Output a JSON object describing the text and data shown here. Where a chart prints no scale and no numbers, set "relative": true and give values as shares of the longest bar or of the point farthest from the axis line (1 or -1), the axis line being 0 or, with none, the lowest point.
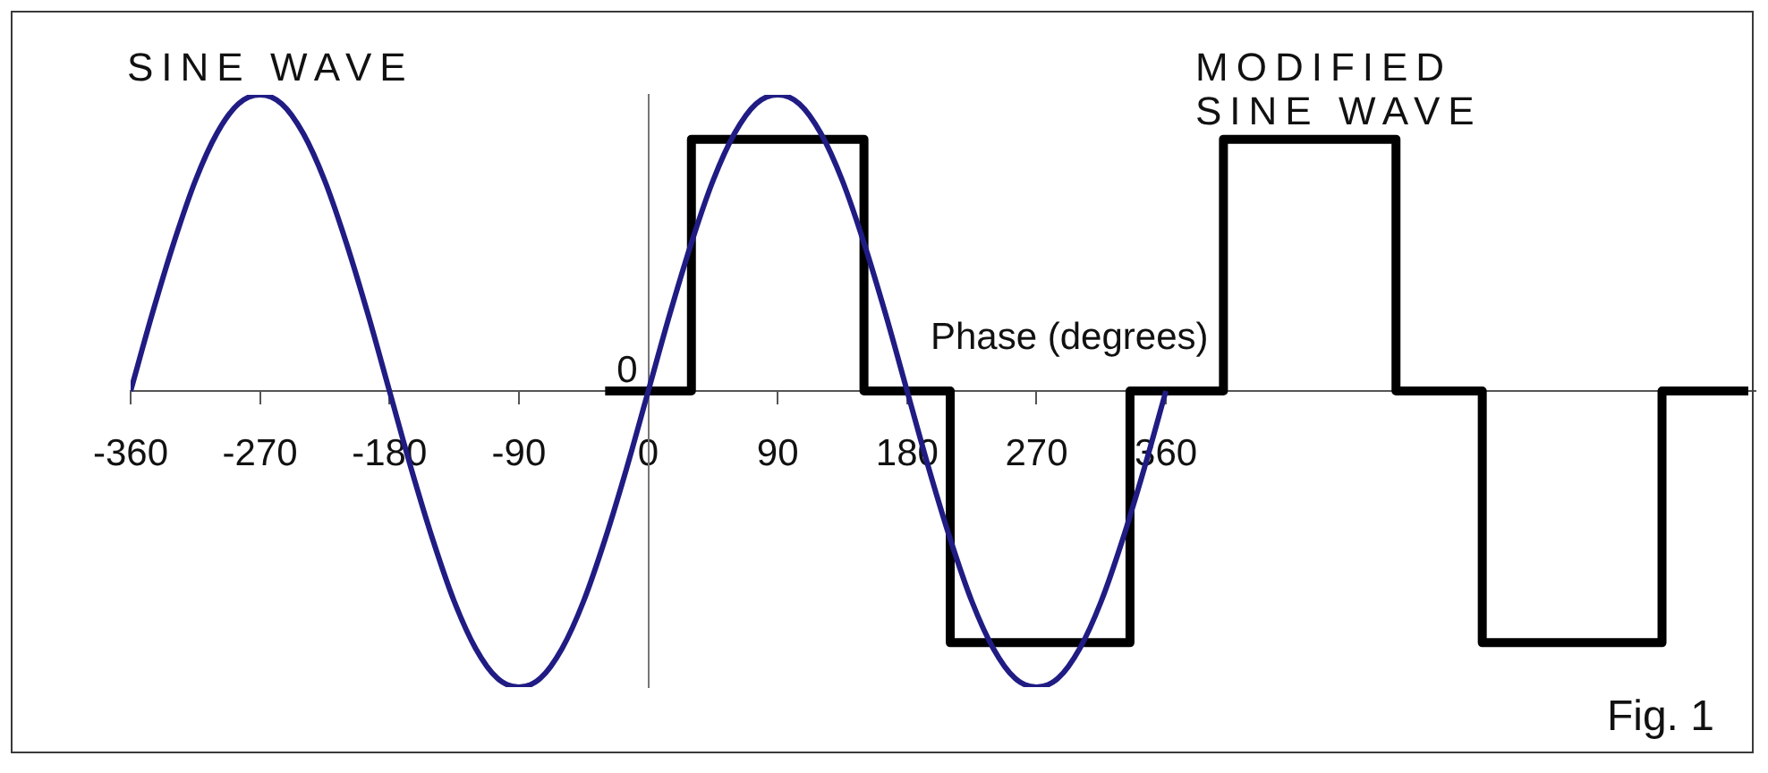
{
  "chart_data": {
    "type": "line",
    "xlabel": "Phase (degrees)",
    "relative": true,
    "xlim": [
      -360,
      770
    ],
    "xticks": [
      -360,
      -270,
      -180,
      -90,
      0,
      90,
      180,
      270,
      360
    ],
    "series": [
      {
        "name": "SINE WAVE",
        "color": "#201c84",
        "x": [
          -360,
          -345,
          -330,
          -315,
          -300,
          -285,
          -270,
          -255,
          -240,
          -225,
          -210,
          -195,
          -180,
          -165,
          -150,
          -135,
          -120,
          -105,
          -90,
          -75,
          -60,
          -45,
          -30,
          -15,
          0,
          15,
          30,
          45,
          60,
          75,
          90,
          105,
          120,
          135,
          150,
          165,
          180,
          195,
          210,
          225,
          240,
          255,
          270,
          285,
          300,
          315,
          330,
          345,
          360
        ],
        "values": [
          0,
          0.26,
          0.5,
          0.71,
          0.87,
          0.97,
          1,
          0.97,
          0.87,
          0.71,
          0.5,
          0.26,
          0,
          -0.26,
          -0.5,
          -0.71,
          -0.87,
          -0.97,
          -1,
          -0.97,
          -0.87,
          -0.71,
          -0.5,
          -0.26,
          0,
          0.26,
          0.5,
          0.71,
          0.87,
          0.97,
          1,
          0.97,
          0.87,
          0.71,
          0.5,
          0.26,
          0,
          -0.26,
          -0.5,
          -0.71,
          -0.87,
          -0.97,
          -1,
          -0.97,
          -0.87,
          -0.71,
          -0.5,
          -0.26,
          0
        ]
      },
      {
        "name": "MODIFIED SINE WAVE",
        "type": "step",
        "color": "#000000",
        "x": [
          -30,
          30,
          150,
          210,
          335,
          400,
          520,
          580,
          705,
          765
        ],
        "values": [
          0,
          0.85,
          0,
          -0.85,
          0,
          0.85,
          0,
          -0.85,
          0,
          0
        ]
      }
    ],
    "annotations": [
      {
        "text": "0",
        "x": 0,
        "y": 0
      },
      "Fig. 1"
    ]
  }
}
